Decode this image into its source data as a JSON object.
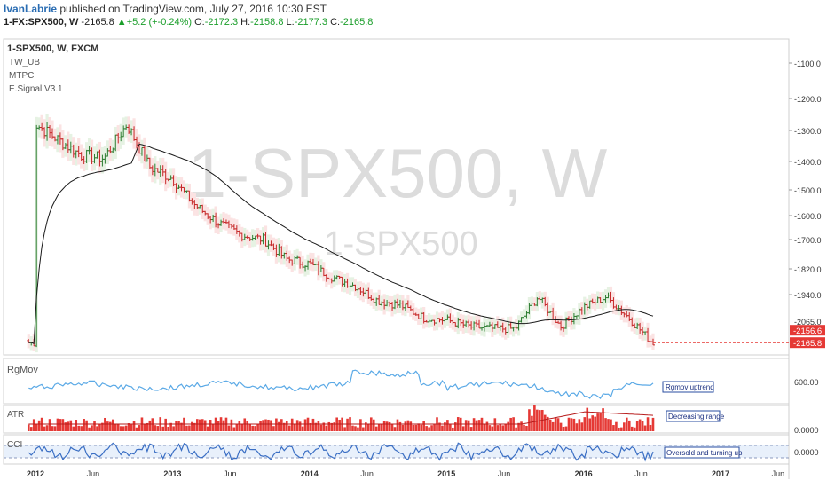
{
  "header": {
    "author": "IvanLabrie",
    "published": "published on TradingView.com, July 27, 2016 10:30 EST",
    "symbol": "1-FX:SPX500, W",
    "last": "-2165.8",
    "change": "+5.2 (+-0.24%)",
    "o_label": "O:",
    "o_value": "-2172.3",
    "h_label": "H:",
    "h_value": "-2158.8",
    "l_label": "L:",
    "l_value": "-2177.3",
    "c_label": "C:",
    "c_value": "-2165.8"
  },
  "main_legend": {
    "title": "1-SPX500, W, FXCM",
    "indicators": [
      "TW_UB",
      "MTPC",
      "E.Signal V3.1"
    ]
  },
  "watermark": {
    "big": "1-SPX500, W",
    "small": "1-SPX500"
  },
  "colors": {
    "up": "#2e7d32",
    "down": "#c62828",
    "bg_up": "#e6f2e3",
    "bg_down": "#fbe3e3",
    "ma": "#1a1a1a",
    "rgmov": "#5aa9e6",
    "cci": "#3b6fc4",
    "atr_bar": "#e53935",
    "atr_line": "#b71c1c",
    "price_tag": "#e53935"
  },
  "chart_data": [
    {
      "type": "candlestick",
      "title": "1-SPX500, W, FXCM",
      "note": "Inverted price scale (negative values)",
      "y_ticks": [
        "-1100.0",
        "-1200.0",
        "-1300.0",
        "-1400.0",
        "-1500.0",
        "-1600.0",
        "-1700.0",
        "-1820.0",
        "-1940.0",
        "-2065.0"
      ],
      "x_ticks": [
        "2012",
        "Jun",
        "2013",
        "Jun",
        "2014",
        "Jun",
        "2015",
        "Jun",
        "2016",
        "Jun",
        "2017",
        "Jun"
      ],
      "last_price_labels": [
        "-2156.6",
        "-2165.8"
      ],
      "close_path": [
        [
          "2012-01",
          -1280
        ],
        [
          "2012-03",
          -1330
        ],
        [
          "2012-05",
          -1380
        ],
        [
          "2012-07",
          -1390
        ],
        [
          "2012-09",
          -1280
        ],
        [
          "2012-11",
          -1420
        ],
        [
          "2013-01",
          -1460
        ],
        [
          "2013-03",
          -1560
        ],
        [
          "2013-05",
          -1630
        ],
        [
          "2013-07",
          -1680
        ],
        [
          "2013-09",
          -1700
        ],
        [
          "2013-11",
          -1780
        ],
        [
          "2014-01",
          -1800
        ],
        [
          "2014-03",
          -1860
        ],
        [
          "2014-05",
          -1900
        ],
        [
          "2014-07",
          -1970
        ],
        [
          "2014-09",
          -1990
        ],
        [
          "2014-11",
          -2050
        ],
        [
          "2015-01",
          -2060
        ],
        [
          "2015-03",
          -2090
        ],
        [
          "2015-05",
          -2100
        ],
        [
          "2015-07",
          -2100
        ],
        [
          "2015-09",
          -1950
        ],
        [
          "2015-11",
          -2090
        ],
        [
          "2016-01",
          -2000
        ],
        [
          "2016-03",
          -1950
        ],
        [
          "2016-05",
          -2050
        ],
        [
          "2016-07",
          -2165.8
        ]
      ]
    },
    {
      "type": "line",
      "title": "RgMov",
      "y_ticks": [
        "600.00"
      ],
      "annotation": "Rgmov uptrend"
    },
    {
      "type": "bar",
      "title": "ATR",
      "y_ticks": [
        "0.0000"
      ],
      "annotation": "Decreasing range"
    },
    {
      "type": "line",
      "title": "CCI",
      "y_ticks": [
        "0.0000"
      ],
      "annotation": "Oversold and turning up"
    }
  ]
}
